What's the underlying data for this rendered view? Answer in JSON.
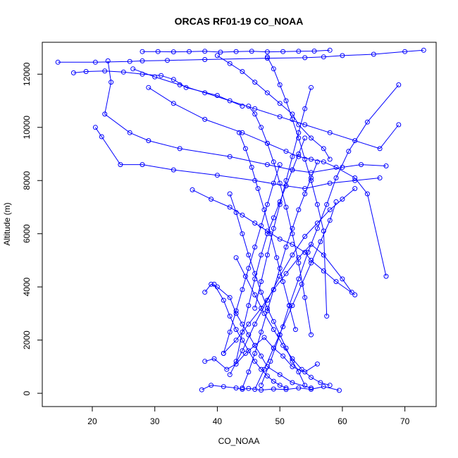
{
  "chart_data": {
    "type": "line",
    "title": "ORCAS RF01-19 CO_NOAA",
    "xlabel": "CO_NOAA",
    "ylabel": "Altitude (m)",
    "xlim": [
      12,
      75
    ],
    "ylim": [
      -500,
      13200
    ],
    "x_ticks": [
      20,
      30,
      40,
      50,
      60,
      70
    ],
    "y_ticks": [
      0,
      2000,
      4000,
      6000,
      8000,
      10000,
      12000
    ],
    "grid": false,
    "series_color": "#0000ff",
    "marker": "open-circle",
    "series": [
      {
        "x": [
          14.5,
          20.5,
          26.0,
          28.0,
          32.0,
          38.0,
          48.0,
          54.0,
          57.0,
          60.0,
          65.0,
          70.0,
          73.0
        ],
        "y": [
          12450,
          12450,
          12480,
          12500,
          12520,
          12550,
          12600,
          12620,
          12650,
          12700,
          12750,
          12850,
          12900
        ]
      },
      {
        "x": [
          17.0,
          19.0,
          22.0,
          25.0,
          28.0,
          31.0,
          33.0,
          35.0,
          40.0,
          44.0
        ],
        "y": [
          12050,
          12100,
          12120,
          12080,
          12000,
          11950,
          11800,
          11500,
          11200,
          10800
        ]
      },
      {
        "x": [
          22.5,
          23.0,
          22.0,
          26.0,
          29.0,
          34.0,
          42.0,
          48.0,
          52.0,
          55.0,
          60.0,
          63.0,
          67.0
        ],
        "y": [
          12500,
          11700,
          10500,
          9800,
          9500,
          9200,
          8900,
          8600,
          8400,
          8300,
          8500,
          8600,
          8550
        ]
      },
      {
        "x": [
          20.5,
          21.5,
          24.5,
          28.0,
          33.0,
          40.0,
          46.0,
          51.0,
          54.0,
          58.0,
          62.0,
          66.0
        ],
        "y": [
          10000,
          9650,
          8600,
          8600,
          8400,
          8200,
          8000,
          7800,
          7700,
          7900,
          8000,
          8100
        ]
      },
      {
        "x": [
          29.0,
          33.0,
          38.0,
          44.0,
          48.0,
          51.0,
          53.0,
          55.0,
          57.0,
          59.0,
          62.0,
          64.0,
          67.0
        ],
        "y": [
          11500,
          10900,
          10300,
          9800,
          9400,
          9100,
          8900,
          8800,
          8700,
          8500,
          8100,
          7500,
          4400
        ]
      },
      {
        "x": [
          36.0,
          39.0,
          42.0,
          44.0,
          46.0,
          48.0,
          50.0,
          52.0,
          54.0,
          55.0,
          57.0,
          59.0,
          62.0
        ],
        "y": [
          7650,
          7300,
          7000,
          6700,
          6400,
          6100,
          5800,
          5600,
          5300,
          5000,
          4600,
          4200,
          3700
        ]
      },
      {
        "x": [
          38.0,
          39.0,
          40.0,
          42.0,
          43.0,
          44.0,
          45.0,
          46.0,
          47.0,
          48.0,
          50.0,
          52.0,
          55.0
        ],
        "y": [
          3800,
          4100,
          4000,
          3600,
          3000,
          2600,
          2200,
          1800,
          1400,
          1000,
          700,
          400,
          200
        ]
      },
      {
        "x": [
          37.5,
          39.0,
          41.0,
          43.0,
          44.0,
          45.0,
          47.0,
          49.0,
          51.0,
          53.0,
          55.0,
          57.0,
          59.5
        ],
        "y": [
          130,
          300,
          250,
          200,
          150,
          180,
          120,
          160,
          140,
          200,
          150,
          250,
          110
        ]
      },
      {
        "x": [
          38.0,
          39.5,
          41.5,
          43.0,
          44.5,
          46.0,
          47.5,
          49.0,
          50.5,
          52.0,
          54.0,
          56.0
        ],
        "y": [
          1200,
          1300,
          900,
          1100,
          1500,
          1800,
          2100,
          1700,
          1400,
          1000,
          800,
          1100
        ]
      },
      {
        "x": [
          42.0,
          43.0,
          44.0,
          45.0,
          46.0,
          47.0,
          48.0,
          49.0,
          50.0,
          51.0,
          52.0,
          53.0,
          54.0
        ],
        "y": [
          7500,
          6800,
          6000,
          5200,
          4500,
          3800,
          3200,
          2700,
          2200,
          1700,
          1200,
          800,
          300
        ]
      },
      {
        "x": [
          54.0,
          53.0,
          52.0,
          51.0,
          50.0,
          49.0,
          48.0,
          47.0,
          46.0,
          45.0,
          44.0,
          43.0
        ],
        "y": [
          9600,
          9000,
          8400,
          7800,
          7200,
          6600,
          6000,
          5200,
          4300,
          3300,
          2300,
          1200
        ]
      },
      {
        "x": [
          44.0,
          45.0,
          46.0,
          47.0,
          48.0,
          49.0,
          50.0,
          51.0,
          52.0,
          53.0,
          54.0,
          55.0,
          56.0
        ],
        "y": [
          200,
          800,
          1500,
          2300,
          3100,
          3900,
          4700,
          5500,
          6200,
          6900,
          7500,
          8100,
          8700
        ]
      },
      {
        "x": [
          47.0,
          48.5,
          50.0,
          51.5,
          53.0,
          54.5,
          56.0,
          57.5,
          59.0,
          61.0,
          64.0,
          69.0
        ],
        "y": [
          300,
          1200,
          2200,
          3300,
          4300,
          5300,
          6200,
          7100,
          8100,
          9100,
          10200,
          11600
        ]
      },
      {
        "x": [
          45.0,
          46.0,
          47.0,
          48.0,
          49.0,
          50.0,
          51.0,
          52.0,
          53.0,
          54.0,
          55.0
        ],
        "y": [
          10800,
          10500,
          10000,
          9400,
          8700,
          7900,
          7000,
          6000,
          4900,
          3600,
          2200
        ]
      },
      {
        "x": [
          42.0,
          44.0,
          46.0,
          48.0,
          50.0,
          52.0,
          54.0,
          56.0,
          58.0,
          60.0,
          62.0
        ],
        "y": [
          700,
          1600,
          2600,
          3500,
          4400,
          5200,
          5900,
          6400,
          6900,
          7300,
          7700
        ]
      },
      {
        "x": [
          40.0,
          42.0,
          44.0,
          46.0,
          48.0,
          50.0,
          52.0,
          53.0,
          55.0,
          57.0,
          58.0
        ],
        "y": [
          12700,
          12400,
          12100,
          11700,
          11300,
          10900,
          10500,
          10100,
          9600,
          9200,
          8800
        ]
      },
      {
        "x": [
          26.5,
          30.0,
          34.0,
          38.0,
          42.0,
          46.0,
          50.0,
          54.0,
          58.0,
          62.0,
          66.0,
          69.0
        ],
        "y": [
          12200,
          11900,
          11600,
          11300,
          11000,
          10700,
          10400,
          10100,
          9800,
          9500,
          9200,
          10100
        ]
      },
      {
        "x": [
          43.0,
          44.5,
          46.0,
          47.5,
          49.0,
          50.5,
          52.0,
          53.5,
          55.0,
          56.5,
          58.0
        ],
        "y": [
          5100,
          4400,
          3700,
          3000,
          2400,
          1800,
          1300,
          900,
          600,
          400,
          300
        ]
      },
      {
        "x": [
          41.0,
          43.0,
          45.0,
          47.0,
          49.0,
          51.0,
          53.0,
          55.0,
          57.0,
          60.0,
          61.5
        ],
        "y": [
          1500,
          2000,
          2600,
          3200,
          3900,
          4500,
          5100,
          5600,
          5200,
          4300,
          3800
        ]
      },
      {
        "x": [
          48.0,
          49.0,
          50.0,
          51.0,
          52.0,
          53.0,
          54.0,
          55.0,
          56.0,
          57.0,
          57.5
        ],
        "y": [
          12650,
          12200,
          11600,
          11000,
          10300,
          9600,
          8800,
          8000,
          7100,
          6100,
          2900
        ]
      },
      {
        "x": [
          28.0,
          30.5,
          33.0,
          35.5,
          38.0,
          40.5,
          43.0,
          45.5,
          48.0,
          50.5,
          53.0,
          55.5,
          58.0
        ],
        "y": [
          12850,
          12850,
          12840,
          12850,
          12860,
          12830,
          12850,
          12860,
          12840,
          12850,
          12860,
          12870,
          12900
        ]
      },
      {
        "x": [
          39.5,
          41.0,
          42.0,
          43.0,
          44.0,
          45.0,
          46.0,
          47.0,
          48.0,
          49.0,
          50.0,
          51.0
        ],
        "y": [
          4100,
          3500,
          2900,
          2400,
          2000,
          1600,
          1200,
          900,
          650,
          450,
          300,
          200
        ]
      },
      {
        "x": [
          43.5,
          44.5,
          45.5,
          46.5,
          47.5,
          48.5,
          49.5,
          50.5,
          51.5,
          52.5
        ],
        "y": [
          9800,
          9200,
          8500,
          7700,
          6900,
          6000,
          5100,
          4200,
          3300,
          2400
        ]
      },
      {
        "x": [
          50.0,
          49.0,
          48.0,
          47.0,
          46.0,
          45.0,
          44.0,
          43.0,
          42.0,
          41.0
        ],
        "y": [
          8600,
          7900,
          7100,
          6300,
          5500,
          4700,
          3900,
          3100,
          2300,
          1500
        ]
      },
      {
        "x": [
          46.0,
          47.5,
          49.0,
          50.5,
          52.0,
          53.5,
          55.0,
          56.5,
          58.0,
          59.0
        ],
        "y": [
          150,
          900,
          1700,
          2500,
          3300,
          4100,
          4900,
          5700,
          6500,
          7200
        ]
      },
      {
        "x": [
          55.0,
          54.0,
          53.0,
          52.0,
          51.0,
          50.0,
          49.0,
          48.0,
          47.0,
          46.0
        ],
        "y": [
          11500,
          10700,
          9800,
          8900,
          8000,
          7100,
          6200,
          5200,
          4200,
          3200
        ]
      }
    ]
  }
}
